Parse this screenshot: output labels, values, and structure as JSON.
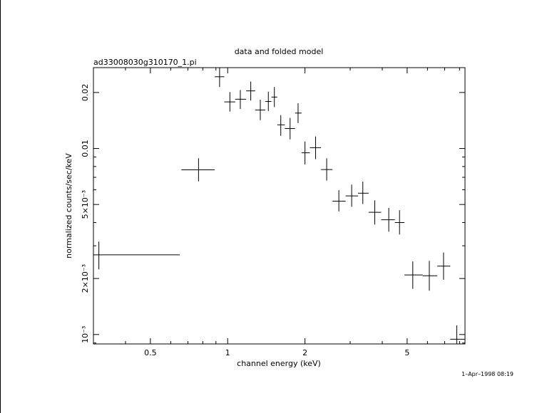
{
  "chart_data": {
    "type": "scatter",
    "title": "data and folded model",
    "subtitle": "ad33008030g310170_1.pi",
    "xlabel": "channel energy (keV)",
    "ylabel": "normalized counts/sec/keV",
    "timestamp": "1–Apr–1998 08:19",
    "x_scale": "log",
    "y_scale": "log",
    "xlim": [
      0.3,
      8.4
    ],
    "ylim": [
      0.00089,
      0.0272
    ],
    "x_ticks": [
      {
        "value": 0.5,
        "label": "0.5"
      },
      {
        "value": 1,
        "label": "1"
      },
      {
        "value": 2,
        "label": "2"
      },
      {
        "value": 5,
        "label": "5"
      }
    ],
    "y_ticks": [
      {
        "value": 0.001,
        "label": "10⁻³"
      },
      {
        "value": 0.002,
        "label": "2×10⁻³"
      },
      {
        "value": 0.005,
        "label": "5×10⁻³"
      },
      {
        "value": 0.01,
        "label": "0.01"
      },
      {
        "value": 0.02,
        "label": "0.02"
      }
    ],
    "grid": false,
    "points": [
      {
        "x": 0.315,
        "y": 0.00268,
        "xlo": 0.3,
        "xhi": 0.65,
        "ylo": 0.00224,
        "yhi": 0.00316
      },
      {
        "x": 0.77,
        "y": 0.00768,
        "xlo": 0.66,
        "xhi": 0.89,
        "ylo": 0.00666,
        "yhi": 0.00886
      },
      {
        "x": 0.93,
        "y": 0.0243,
        "xlo": 0.89,
        "xhi": 0.97,
        "ylo": 0.0214,
        "yhi": 0.0272
      },
      {
        "x": 1.02,
        "y": 0.0178,
        "xlo": 0.97,
        "xhi": 1.07,
        "ylo": 0.0158,
        "yhi": 0.0201
      },
      {
        "x": 1.12,
        "y": 0.0184,
        "xlo": 1.07,
        "xhi": 1.18,
        "ylo": 0.0163,
        "yhi": 0.0206
      },
      {
        "x": 1.23,
        "y": 0.0204,
        "xlo": 1.18,
        "xhi": 1.28,
        "ylo": 0.0181,
        "yhi": 0.0229
      },
      {
        "x": 1.34,
        "y": 0.0161,
        "xlo": 1.28,
        "xhi": 1.4,
        "ylo": 0.0142,
        "yhi": 0.0183
      },
      {
        "x": 1.44,
        "y": 0.0179,
        "xlo": 1.4,
        "xhi": 1.48,
        "ylo": 0.0159,
        "yhi": 0.0202
      },
      {
        "x": 1.52,
        "y": 0.0189,
        "xlo": 1.48,
        "xhi": 1.56,
        "ylo": 0.0167,
        "yhi": 0.0214
      },
      {
        "x": 1.61,
        "y": 0.0134,
        "xlo": 1.56,
        "xhi": 1.67,
        "ylo": 0.0117,
        "yhi": 0.0151
      },
      {
        "x": 1.75,
        "y": 0.0128,
        "xlo": 1.67,
        "xhi": 1.83,
        "ylo": 0.0112,
        "yhi": 0.0146
      },
      {
        "x": 1.88,
        "y": 0.0155,
        "xlo": 1.83,
        "xhi": 1.94,
        "ylo": 0.0137,
        "yhi": 0.0175
      },
      {
        "x": 2.0,
        "y": 0.00948,
        "xlo": 1.94,
        "xhi": 2.09,
        "ylo": 0.00821,
        "yhi": 0.0109
      },
      {
        "x": 2.2,
        "y": 0.0101,
        "xlo": 2.09,
        "xhi": 2.31,
        "ylo": 0.00876,
        "yhi": 0.0116
      },
      {
        "x": 2.43,
        "y": 0.0077,
        "xlo": 2.31,
        "xhi": 2.56,
        "ylo": 0.00672,
        "yhi": 0.00885
      },
      {
        "x": 2.71,
        "y": 0.00521,
        "xlo": 2.56,
        "xhi": 2.88,
        "ylo": 0.00459,
        "yhi": 0.00597
      },
      {
        "x": 3.04,
        "y": 0.00556,
        "xlo": 2.88,
        "xhi": 3.22,
        "ylo": 0.00486,
        "yhi": 0.00639
      },
      {
        "x": 3.36,
        "y": 0.00575,
        "xlo": 3.22,
        "xhi": 3.54,
        "ylo": 0.00503,
        "yhi": 0.00664
      },
      {
        "x": 3.74,
        "y": 0.00454,
        "xlo": 3.54,
        "xhi": 3.96,
        "ylo": 0.0039,
        "yhi": 0.00526
      },
      {
        "x": 4.24,
        "y": 0.00414,
        "xlo": 3.96,
        "xhi": 4.48,
        "ylo": 0.00357,
        "yhi": 0.00479
      },
      {
        "x": 4.67,
        "y": 0.004,
        "xlo": 4.48,
        "xhi": 4.88,
        "ylo": 0.00345,
        "yhi": 0.00466
      },
      {
        "x": 5.26,
        "y": 0.00209,
        "xlo": 4.88,
        "xhi": 5.75,
        "ylo": 0.00176,
        "yhi": 0.00247
      },
      {
        "x": 6.1,
        "y": 0.00207,
        "xlo": 5.75,
        "xhi": 6.55,
        "ylo": 0.00172,
        "yhi": 0.00249
      },
      {
        "x": 6.93,
        "y": 0.00233,
        "xlo": 6.55,
        "xhi": 7.36,
        "ylo": 0.00197,
        "yhi": 0.00276
      },
      {
        "x": 7.8,
        "y": 0.000943,
        "xlo": 7.36,
        "xhi": 8.4,
        "ylo": 0.00079,
        "yhi": 0.00112
      }
    ]
  }
}
